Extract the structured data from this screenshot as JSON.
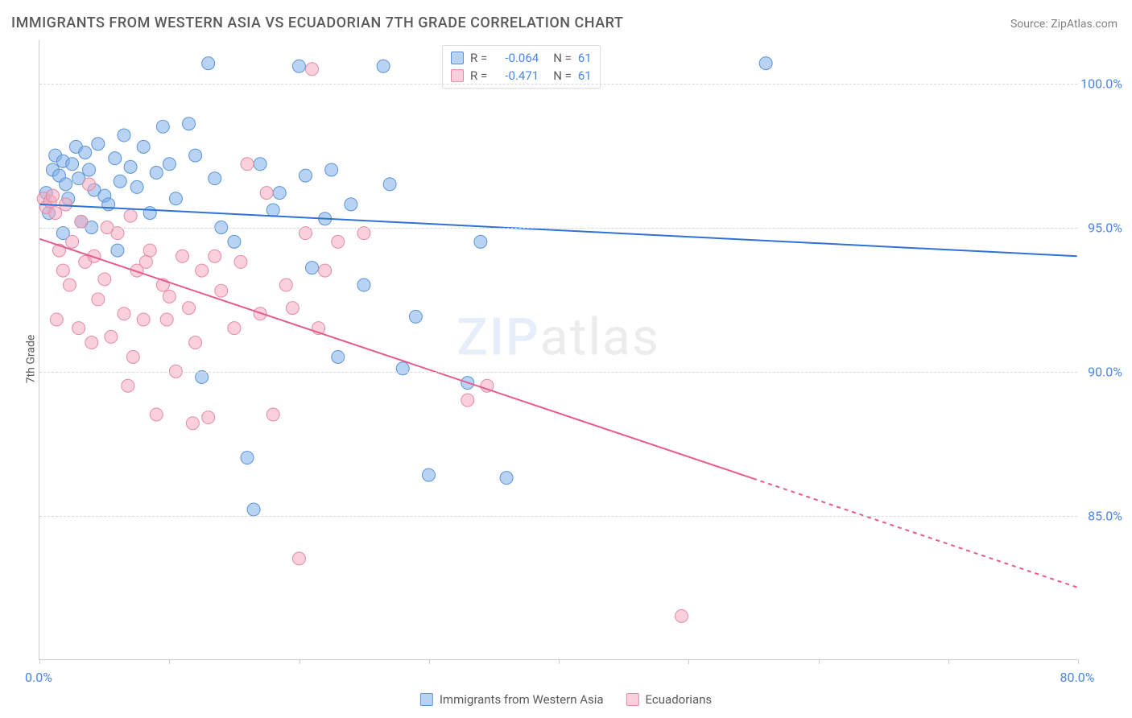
{
  "title": "IMMIGRANTS FROM WESTERN ASIA VS ECUADORIAN 7TH GRADE CORRELATION CHART",
  "source_label": "Source:",
  "source_name": "ZipAtlas.com",
  "y_axis_label": "7th Grade",
  "watermark": {
    "part1": "ZIP",
    "part2": "atlas"
  },
  "colors": {
    "series_a_fill": "rgba(125,175,235,0.55)",
    "series_a_stroke": "#5b93d6",
    "series_a_line": "#2f72d4",
    "series_b_fill": "rgba(244,170,190,0.55)",
    "series_b_stroke": "#e58aa4",
    "series_b_line": "#e75a8d",
    "tick_text": "#4a86e8",
    "grid": "#d8d8d8",
    "axis": "#cccccc",
    "title_text": "#5a5a5a"
  },
  "chart": {
    "type": "scatter",
    "xlim": [
      0,
      80
    ],
    "ylim": [
      80,
      101.5
    ],
    "x_ticks": [
      0,
      10,
      20,
      30,
      40,
      50,
      60,
      70,
      80
    ],
    "x_tick_labels": {
      "0": "0.0%",
      "80": "80.0%"
    },
    "y_ticks": [
      85,
      90,
      95,
      100
    ],
    "y_tick_labels": [
      "85.0%",
      "90.0%",
      "95.0%",
      "100.0%"
    ],
    "marker_radius": 8,
    "line_width": 2
  },
  "legend_top": {
    "rows": [
      {
        "swatch_fill": "rgba(125,175,235,0.55)",
        "swatch_stroke": "#5b93d6",
        "r_label": "R =",
        "r_value": "-0.064",
        "n_label": "N =",
        "n_value": "61"
      },
      {
        "swatch_fill": "rgba(244,170,190,0.55)",
        "swatch_stroke": "#e58aa4",
        "r_label": "R =",
        "r_value": "-0.471",
        "n_label": "N =",
        "n_value": "61"
      }
    ]
  },
  "legend_bottom": {
    "items": [
      {
        "swatch_fill": "rgba(125,175,235,0.55)",
        "swatch_stroke": "#5b93d6",
        "label": "Immigrants from Western Asia"
      },
      {
        "swatch_fill": "rgba(244,170,190,0.55)",
        "swatch_stroke": "#e58aa4",
        "label": "Ecuadorians"
      }
    ]
  },
  "series": [
    {
      "name": "Immigrants from Western Asia",
      "color_fill": "rgba(125,175,235,0.55)",
      "color_stroke": "#5b93d6",
      "trend": {
        "x1": 0,
        "y1": 95.8,
        "x2": 80,
        "y2": 94.0,
        "solid_until_x": 80
      },
      "points": [
        [
          0.5,
          96.2
        ],
        [
          0.7,
          95.5
        ],
        [
          1.0,
          97.0
        ],
        [
          1.2,
          97.5
        ],
        [
          1.5,
          96.8
        ],
        [
          1.8,
          97.3
        ],
        [
          2.0,
          96.5
        ],
        [
          2.2,
          96.0
        ],
        [
          2.5,
          97.2
        ],
        [
          2.8,
          97.8
        ],
        [
          3.0,
          96.7
        ],
        [
          3.2,
          95.2
        ],
        [
          3.5,
          97.6
        ],
        [
          3.8,
          97.0
        ],
        [
          4.2,
          96.3
        ],
        [
          4.5,
          97.9
        ],
        [
          5.0,
          96.1
        ],
        [
          5.3,
          95.8
        ],
        [
          5.8,
          97.4
        ],
        [
          6.2,
          96.6
        ],
        [
          6.5,
          98.2
        ],
        [
          7.0,
          97.1
        ],
        [
          7.5,
          96.4
        ],
        [
          8.0,
          97.8
        ],
        [
          8.5,
          95.5
        ],
        [
          9.0,
          96.9
        ],
        [
          9.5,
          98.5
        ],
        [
          10.0,
          97.2
        ],
        [
          10.5,
          96.0
        ],
        [
          11.5,
          98.6
        ],
        [
          12.0,
          97.5
        ],
        [
          12.5,
          89.8
        ],
        [
          13.0,
          100.7
        ],
        [
          13.5,
          96.7
        ],
        [
          14.0,
          95.0
        ],
        [
          15.0,
          94.5
        ],
        [
          16.0,
          87.0
        ],
        [
          16.5,
          85.2
        ],
        [
          17.0,
          97.2
        ],
        [
          18.0,
          95.6
        ],
        [
          18.5,
          96.2
        ],
        [
          20.0,
          100.6
        ],
        [
          20.5,
          96.8
        ],
        [
          21.0,
          93.6
        ],
        [
          22.0,
          95.3
        ],
        [
          22.5,
          97.0
        ],
        [
          23.0,
          90.5
        ],
        [
          24.0,
          95.8
        ],
        [
          25.0,
          93.0
        ],
        [
          26.5,
          100.6
        ],
        [
          27.0,
          96.5
        ],
        [
          28.0,
          90.1
        ],
        [
          29.0,
          91.9
        ],
        [
          30.0,
          86.4
        ],
        [
          33.0,
          89.6
        ],
        [
          34.0,
          94.5
        ],
        [
          36.0,
          86.3
        ],
        [
          56.0,
          100.7
        ],
        [
          1.8,
          94.8
        ],
        [
          4.0,
          95.0
        ],
        [
          6.0,
          94.2
        ]
      ]
    },
    {
      "name": "Ecuadorians",
      "color_fill": "rgba(244,170,190,0.55)",
      "color_stroke": "#e58aa4",
      "trend": {
        "x1": 0,
        "y1": 94.6,
        "x2": 80,
        "y2": 82.5,
        "solid_until_x": 55
      },
      "points": [
        [
          0.3,
          96.0
        ],
        [
          0.5,
          95.7
        ],
        [
          0.8,
          95.9
        ],
        [
          1.0,
          96.1
        ],
        [
          1.2,
          95.5
        ],
        [
          1.5,
          94.2
        ],
        [
          1.8,
          93.5
        ],
        [
          2.0,
          95.8
        ],
        [
          2.3,
          93.0
        ],
        [
          2.5,
          94.5
        ],
        [
          3.0,
          91.5
        ],
        [
          3.2,
          95.2
        ],
        [
          3.5,
          93.8
        ],
        [
          4.0,
          91.0
        ],
        [
          4.2,
          94.0
        ],
        [
          4.5,
          92.5
        ],
        [
          5.0,
          93.2
        ],
        [
          5.5,
          91.2
        ],
        [
          6.0,
          94.8
        ],
        [
          6.5,
          92.0
        ],
        [
          7.0,
          95.4
        ],
        [
          7.2,
          90.5
        ],
        [
          7.5,
          93.5
        ],
        [
          8.0,
          91.8
        ],
        [
          8.5,
          94.2
        ],
        [
          9.0,
          88.5
        ],
        [
          9.5,
          93.0
        ],
        [
          10.0,
          92.6
        ],
        [
          10.5,
          90.0
        ],
        [
          11.0,
          94.0
        ],
        [
          11.5,
          92.2
        ],
        [
          12.0,
          91.0
        ],
        [
          12.5,
          93.5
        ],
        [
          13.0,
          88.4
        ],
        [
          14.0,
          92.8
        ],
        [
          15.0,
          91.5
        ],
        [
          16.0,
          97.2
        ],
        [
          17.0,
          92.0
        ],
        [
          17.5,
          96.2
        ],
        [
          18.0,
          88.5
        ],
        [
          19.0,
          93.0
        ],
        [
          20.0,
          83.5
        ],
        [
          20.5,
          94.8
        ],
        [
          21.0,
          100.5
        ],
        [
          21.5,
          91.5
        ],
        [
          23.0,
          94.5
        ],
        [
          25.0,
          94.8
        ],
        [
          33.0,
          89.0
        ],
        [
          34.5,
          89.5
        ],
        [
          49.5,
          81.5
        ],
        [
          3.8,
          96.5
        ],
        [
          5.2,
          95.0
        ],
        [
          6.8,
          89.5
        ],
        [
          8.2,
          93.8
        ],
        [
          9.8,
          91.8
        ],
        [
          11.8,
          88.2
        ],
        [
          13.5,
          94.0
        ],
        [
          15.5,
          93.8
        ],
        [
          19.5,
          92.2
        ],
        [
          22.0,
          93.5
        ],
        [
          1.3,
          91.8
        ]
      ]
    }
  ]
}
